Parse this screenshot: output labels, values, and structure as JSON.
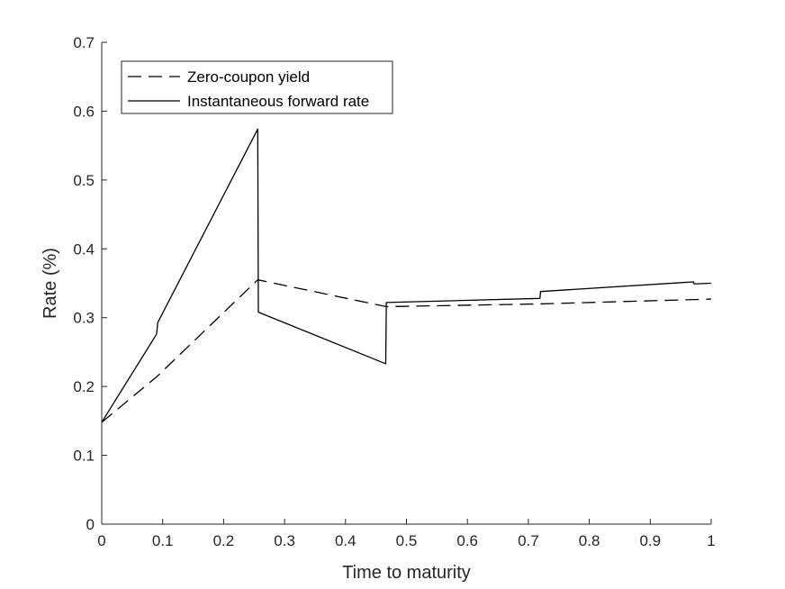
{
  "chart_data": {
    "type": "line",
    "title": "",
    "xlabel": "Time to maturity",
    "ylabel": "Rate (%)",
    "xlim": [
      0,
      1
    ],
    "ylim": [
      0,
      0.7
    ],
    "xticks": [
      0,
      0.1,
      0.2,
      0.3,
      0.4,
      0.5,
      0.6,
      0.7,
      0.8,
      0.9,
      1
    ],
    "xtick_labels": [
      "0",
      "0.1",
      "0.2",
      "0.3",
      "0.4",
      "0.5",
      "0.6",
      "0.7",
      "0.8",
      "0.9",
      "1"
    ],
    "yticks": [
      0,
      0.1,
      0.2,
      0.3,
      0.4,
      0.5,
      0.6,
      0.7
    ],
    "ytick_labels": [
      "0",
      "0.1",
      "0.2",
      "0.3",
      "0.4",
      "0.5",
      "0.6",
      "0.7"
    ],
    "grid": false,
    "legend_position": "top-left",
    "series": [
      {
        "name": "Zero-coupon yield",
        "style": "dashed",
        "color": "#000000",
        "x": [
          0,
          0.09,
          0.256,
          0.467,
          0.72,
          1.0
        ],
        "y": [
          0.148,
          0.214,
          0.355,
          0.316,
          0.32,
          0.327
        ]
      },
      {
        "name": "Instantaneous forward rate",
        "style": "solid",
        "color": "#000000",
        "x": [
          0,
          0.09,
          0.092,
          0.256,
          0.257,
          0.466,
          0.467,
          0.719,
          0.72,
          0.971,
          0.972,
          1.0
        ],
        "y": [
          0.148,
          0.276,
          0.293,
          0.574,
          0.308,
          0.233,
          0.322,
          0.328,
          0.338,
          0.352,
          0.349,
          0.35
        ]
      }
    ]
  }
}
